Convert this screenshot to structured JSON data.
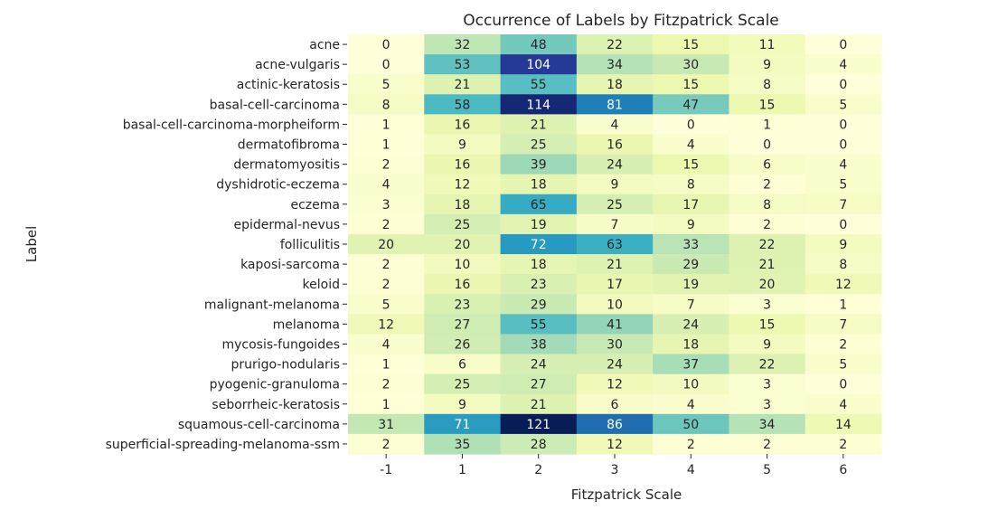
{
  "chart_data": {
    "type": "heatmap",
    "title": "Occurrence of Labels by Fitzpatrick Scale",
    "xlabel": "Fitzpatrick Scale",
    "ylabel": "Label",
    "colormap": "YlGnBu",
    "color_range": [
      0,
      121
    ],
    "colorbar": false,
    "grid": false,
    "x_categories": [
      "-1",
      "1",
      "2",
      "3",
      "4",
      "5",
      "6"
    ],
    "y_categories": [
      "acne",
      "acne-vulgaris",
      "actinic-keratosis",
      "basal-cell-carcinoma",
      "basal-cell-carcinoma-morpheiform",
      "dermatofibroma",
      "dermatomyositis",
      "dyshidrotic-eczema",
      "eczema",
      "epidermal-nevus",
      "folliculitis",
      "kaposi-sarcoma",
      "keloid",
      "malignant-melanoma",
      "melanoma",
      "mycosis-fungoides",
      "prurigo-nodularis",
      "pyogenic-granuloma",
      "seborrheic-keratosis",
      "squamous-cell-carcinoma",
      "superficial-spreading-melanoma-ssm"
    ],
    "values": [
      [
        0,
        32,
        48,
        22,
        15,
        11,
        0
      ],
      [
        0,
        53,
        104,
        34,
        30,
        9,
        4
      ],
      [
        5,
        21,
        55,
        18,
        15,
        8,
        0
      ],
      [
        8,
        58,
        114,
        81,
        47,
        15,
        5
      ],
      [
        1,
        16,
        21,
        4,
        0,
        1,
        0
      ],
      [
        1,
        9,
        25,
        16,
        4,
        0,
        0
      ],
      [
        2,
        16,
        39,
        24,
        15,
        6,
        4
      ],
      [
        4,
        12,
        18,
        9,
        8,
        2,
        5
      ],
      [
        3,
        18,
        65,
        25,
        17,
        8,
        7
      ],
      [
        2,
        25,
        19,
        7,
        9,
        2,
        0
      ],
      [
        20,
        20,
        72,
        63,
        33,
        22,
        9
      ],
      [
        2,
        10,
        18,
        21,
        29,
        21,
        8
      ],
      [
        2,
        16,
        23,
        17,
        19,
        20,
        12
      ],
      [
        5,
        23,
        29,
        10,
        7,
        3,
        1
      ],
      [
        12,
        27,
        55,
        41,
        24,
        15,
        7
      ],
      [
        4,
        26,
        38,
        30,
        18,
        9,
        2
      ],
      [
        1,
        6,
        24,
        24,
        37,
        22,
        5
      ],
      [
        2,
        25,
        27,
        12,
        10,
        3,
        0
      ],
      [
        1,
        9,
        21,
        6,
        4,
        3,
        4
      ],
      [
        31,
        71,
        121,
        86,
        50,
        34,
        14
      ],
      [
        2,
        35,
        28,
        12,
        2,
        2,
        2
      ]
    ]
  }
}
